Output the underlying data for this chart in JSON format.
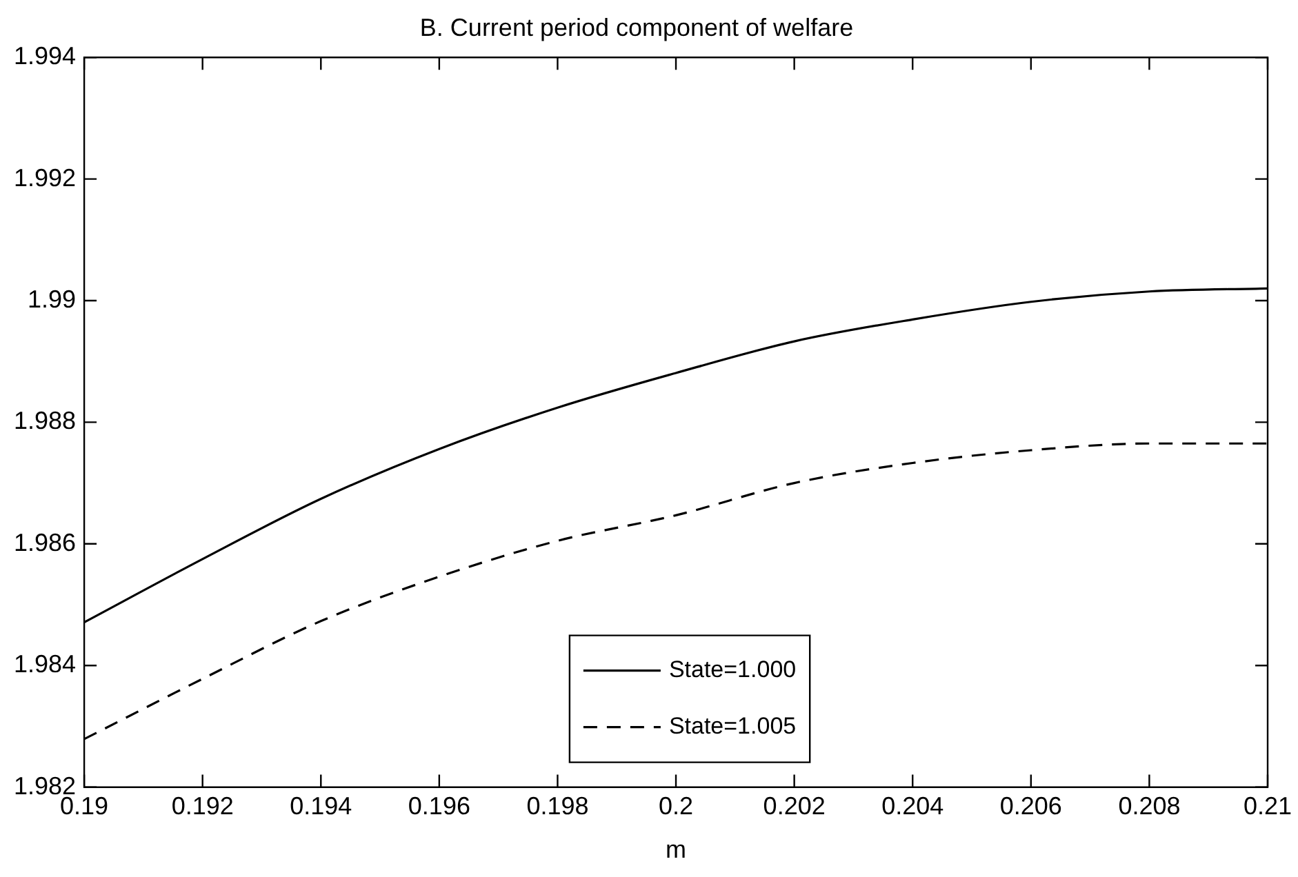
{
  "chart_data": {
    "type": "line",
    "title": "B. Current period component of welfare",
    "xlabel": "m",
    "x": [
      0.19,
      0.192,
      0.194,
      0.196,
      0.198,
      0.2,
      0.202,
      0.204,
      0.206,
      0.208,
      0.21
    ],
    "series": [
      {
        "name": "State=1.000",
        "color": "#000000",
        "line_style": "solid",
        "values": [
          1.98471,
          1.98575,
          1.98674,
          1.98756,
          1.98824,
          1.98881,
          1.98933,
          1.98969,
          1.98998,
          1.99015,
          1.9902
        ]
      },
      {
        "name": "State=1.005",
        "color": "#000000",
        "line_style": "dashed",
        "values": [
          1.98279,
          1.98378,
          1.98473,
          1.98546,
          1.98605,
          1.98647,
          1.987,
          1.98733,
          1.98754,
          1.98765,
          1.98765
        ]
      }
    ],
    "xlim": [
      0.19,
      0.21
    ],
    "xticks": [
      0.19,
      0.192,
      0.194,
      0.196,
      0.198,
      0.2,
      0.202,
      0.204,
      0.206,
      0.208,
      0.21
    ],
    "ylim": [
      1.982,
      1.994
    ],
    "yticks": [
      1.982,
      1.984,
      1.986,
      1.988,
      1.99,
      1.992,
      1.994
    ],
    "grid": false,
    "legend": "bottom",
    "marker": "none"
  }
}
